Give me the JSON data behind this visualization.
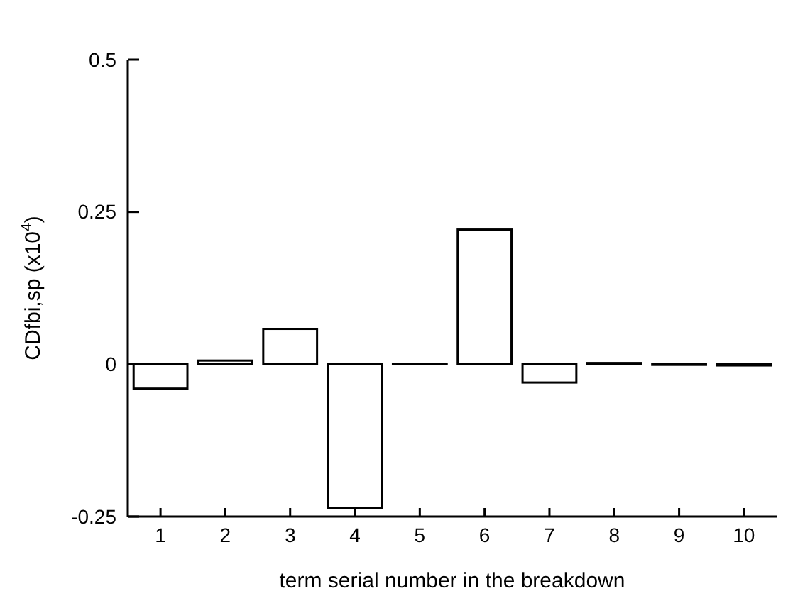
{
  "chart_data": {
    "type": "bar",
    "xlabel": "term serial number in the breakdown",
    "ylabel": "CDfbi,sp (x10$^{4}$)",
    "categories": [
      "1",
      "2",
      "3",
      "4",
      "5",
      "6",
      "7",
      "8",
      "9",
      "10"
    ],
    "values": [
      -0.04,
      0.006,
      0.058,
      -0.236,
      0,
      0.221,
      -0.03,
      0.002,
      -0.001,
      -0.002
    ],
    "color": "#ffffff",
    "ylim": [
      -0.25,
      0.5
    ],
    "yticks": [
      -0.25,
      0,
      0.25,
      0.5
    ],
    "grid": false
  }
}
